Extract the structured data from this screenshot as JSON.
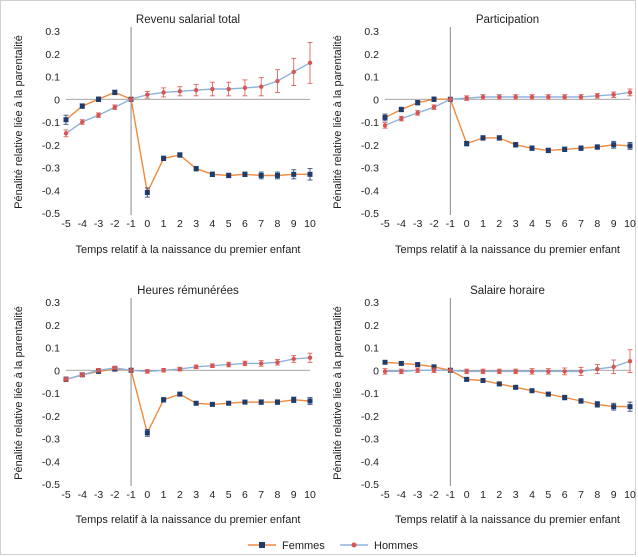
{
  "colors": {
    "femmes": "#1f3c6e",
    "hommes": "#d9534f",
    "femmes_line": "#f08a3c",
    "hommes_line": "#8bb4dd",
    "axis": "#888888"
  },
  "legend": {
    "femmes": "Femmes",
    "hommes": "Hommes"
  },
  "chart_data": [
    {
      "type": "line",
      "title": "Revenu salarial total",
      "xlabel": "Temps relatif à la naissance du premier enfant",
      "ylabel": "Pénalité relative liée à la parentalité",
      "x": [
        -5,
        -4,
        -3,
        -2,
        -1,
        0,
        1,
        2,
        3,
        4,
        5,
        6,
        7,
        8,
        9,
        10
      ],
      "x_ticks": [
        "-5",
        "-4",
        "-3",
        "-2",
        "-1",
        "0",
        "1",
        "2",
        "3",
        "4",
        "5",
        "6",
        "7",
        "8",
        "9",
        "10"
      ],
      "y_ticks": [
        "0.3",
        "0.2",
        "0.1",
        "0",
        "-0.1",
        "-0.2",
        "-0.3",
        "-0.4",
        "-0.5"
      ],
      "ylim": [
        -0.5,
        0.3
      ],
      "series": [
        {
          "name": "Femmes",
          "values": [
            -0.09,
            -0.03,
            0.0,
            0.03,
            0.0,
            -0.41,
            -0.26,
            -0.245,
            -0.305,
            -0.33,
            -0.335,
            -0.33,
            -0.335,
            -0.335,
            -0.33,
            -0.33
          ],
          "err": [
            0.02,
            0.01,
            0.01,
            0.01,
            0,
            0.02,
            0.01,
            0.01,
            0.01,
            0.01,
            0.01,
            0.01,
            0.015,
            0.015,
            0.02,
            0.025
          ]
        },
        {
          "name": "Hommes",
          "values": [
            -0.15,
            -0.1,
            -0.07,
            -0.035,
            0.0,
            0.02,
            0.03,
            0.035,
            0.04,
            0.045,
            0.045,
            0.05,
            0.055,
            0.08,
            0.12,
            0.16
          ],
          "err": [
            0.015,
            0.01,
            0.01,
            0.01,
            0,
            0.015,
            0.02,
            0.02,
            0.025,
            0.03,
            0.03,
            0.035,
            0.04,
            0.05,
            0.06,
            0.09
          ]
        }
      ]
    },
    {
      "type": "line",
      "title": "Participation",
      "xlabel": "Temps relatif à la naissance du premier enfant",
      "ylabel": "Pénalité relative liée à la parentalité",
      "x": [
        -5,
        -4,
        -3,
        -2,
        -1,
        0,
        1,
        2,
        3,
        4,
        5,
        6,
        7,
        8,
        9,
        10
      ],
      "x_ticks": [
        "-5",
        "-4",
        "-3",
        "-2",
        "-1",
        "0",
        "1",
        "2",
        "3",
        "4",
        "5",
        "6",
        "7",
        "8",
        "9",
        "10"
      ],
      "y_ticks": [
        "0.3",
        "0.2",
        "0.1",
        "0",
        "-0.1",
        "-0.2",
        "-0.3",
        "-0.4",
        "-0.5"
      ],
      "ylim": [
        -0.5,
        0.3
      ],
      "series": [
        {
          "name": "Femmes",
          "values": [
            -0.08,
            -0.045,
            -0.015,
            0.0,
            0.0,
            -0.195,
            -0.17,
            -0.17,
            -0.2,
            -0.215,
            -0.225,
            -0.22,
            -0.215,
            -0.21,
            -0.2,
            -0.205
          ],
          "err": [
            0.015,
            0.01,
            0.01,
            0.01,
            0,
            0.01,
            0.01,
            0.01,
            0.01,
            0.01,
            0.01,
            0.01,
            0.01,
            0.01,
            0.015,
            0.015
          ]
        },
        {
          "name": "Hommes",
          "values": [
            -0.115,
            -0.085,
            -0.06,
            -0.035,
            0.0,
            0.005,
            0.01,
            0.01,
            0.01,
            0.01,
            0.01,
            0.01,
            0.01,
            0.015,
            0.02,
            0.03
          ],
          "err": [
            0.012,
            0.01,
            0.01,
            0.01,
            0,
            0.01,
            0.01,
            0.01,
            0.01,
            0.01,
            0.01,
            0.01,
            0.01,
            0.01,
            0.012,
            0.015
          ]
        }
      ]
    },
    {
      "type": "line",
      "title": "Heures rémunérées",
      "xlabel": "Temps relatif à la naissance du premier enfant",
      "ylabel": "Pénalité relative liée à la parentalité",
      "x": [
        -5,
        -4,
        -3,
        -2,
        -1,
        0,
        1,
        2,
        3,
        4,
        5,
        6,
        7,
        8,
        9,
        10
      ],
      "x_ticks": [
        "-5",
        "-4",
        "-3",
        "-2",
        "-1",
        "0",
        "1",
        "2",
        "3",
        "4",
        "5",
        "6",
        "7",
        "8",
        "9",
        "10"
      ],
      "y_ticks": [
        "0.3",
        "0.2",
        "0.1",
        "0",
        "-0.1",
        "-0.2",
        "-0.3",
        "-0.4",
        "-0.5"
      ],
      "ylim": [
        -0.5,
        0.3
      ],
      "series": [
        {
          "name": "Femmes",
          "values": [
            -0.04,
            -0.02,
            -0.005,
            0.005,
            0.0,
            -0.275,
            -0.13,
            -0.105,
            -0.145,
            -0.15,
            -0.145,
            -0.14,
            -0.14,
            -0.14,
            -0.13,
            -0.135
          ],
          "err": [
            0.01,
            0.008,
            0.008,
            0.008,
            0,
            0.015,
            0.01,
            0.008,
            0.008,
            0.008,
            0.008,
            0.008,
            0.01,
            0.01,
            0.012,
            0.015
          ]
        },
        {
          "name": "Hommes",
          "values": [
            -0.04,
            -0.02,
            0.0,
            0.01,
            0.0,
            -0.005,
            0.0,
            0.005,
            0.015,
            0.02,
            0.025,
            0.03,
            0.03,
            0.035,
            0.05,
            0.055
          ],
          "err": [
            0.008,
            0.008,
            0.008,
            0.008,
            0,
            0.008,
            0.008,
            0.008,
            0.008,
            0.008,
            0.01,
            0.01,
            0.012,
            0.012,
            0.015,
            0.02
          ]
        }
      ]
    },
    {
      "type": "line",
      "title": "Salaire horaire",
      "xlabel": "Temps relatif à la naissance du premier enfant",
      "ylabel": "Pénalité relative liée à la parentalité",
      "x": [
        -5,
        -4,
        -3,
        -2,
        -1,
        0,
        1,
        2,
        3,
        4,
        5,
        6,
        7,
        8,
        9,
        10
      ],
      "x_ticks": [
        "-5",
        "-4",
        "-3",
        "-2",
        "-1",
        "0",
        "1",
        "2",
        "3",
        "4",
        "5",
        "6",
        "7",
        "8",
        "9",
        "10"
      ],
      "y_ticks": [
        "0.3",
        "0.2",
        "0.1",
        "0",
        "-0.1",
        "-0.2",
        "-0.3",
        "-0.4",
        "-0.5"
      ],
      "ylim": [
        -0.5,
        0.3
      ],
      "series": [
        {
          "name": "Femmes",
          "values": [
            0.035,
            0.03,
            0.025,
            0.015,
            0.0,
            -0.04,
            -0.045,
            -0.06,
            -0.075,
            -0.09,
            -0.105,
            -0.12,
            -0.135,
            -0.15,
            -0.16,
            -0.16
          ],
          "err": [
            0.008,
            0.008,
            0.008,
            0.008,
            0,
            0.008,
            0.008,
            0.008,
            0.008,
            0.008,
            0.008,
            0.01,
            0.01,
            0.012,
            0.015,
            0.02
          ]
        },
        {
          "name": "Hommes",
          "values": [
            -0.005,
            -0.005,
            0.0,
            0.0,
            0.0,
            -0.005,
            -0.005,
            -0.005,
            -0.005,
            -0.005,
            -0.005,
            -0.005,
            -0.005,
            0.005,
            0.015,
            0.04
          ],
          "err": [
            0.012,
            0.01,
            0.01,
            0.01,
            0,
            0.01,
            0.01,
            0.01,
            0.01,
            0.012,
            0.012,
            0.015,
            0.018,
            0.02,
            0.03,
            0.05
          ]
        }
      ]
    }
  ]
}
